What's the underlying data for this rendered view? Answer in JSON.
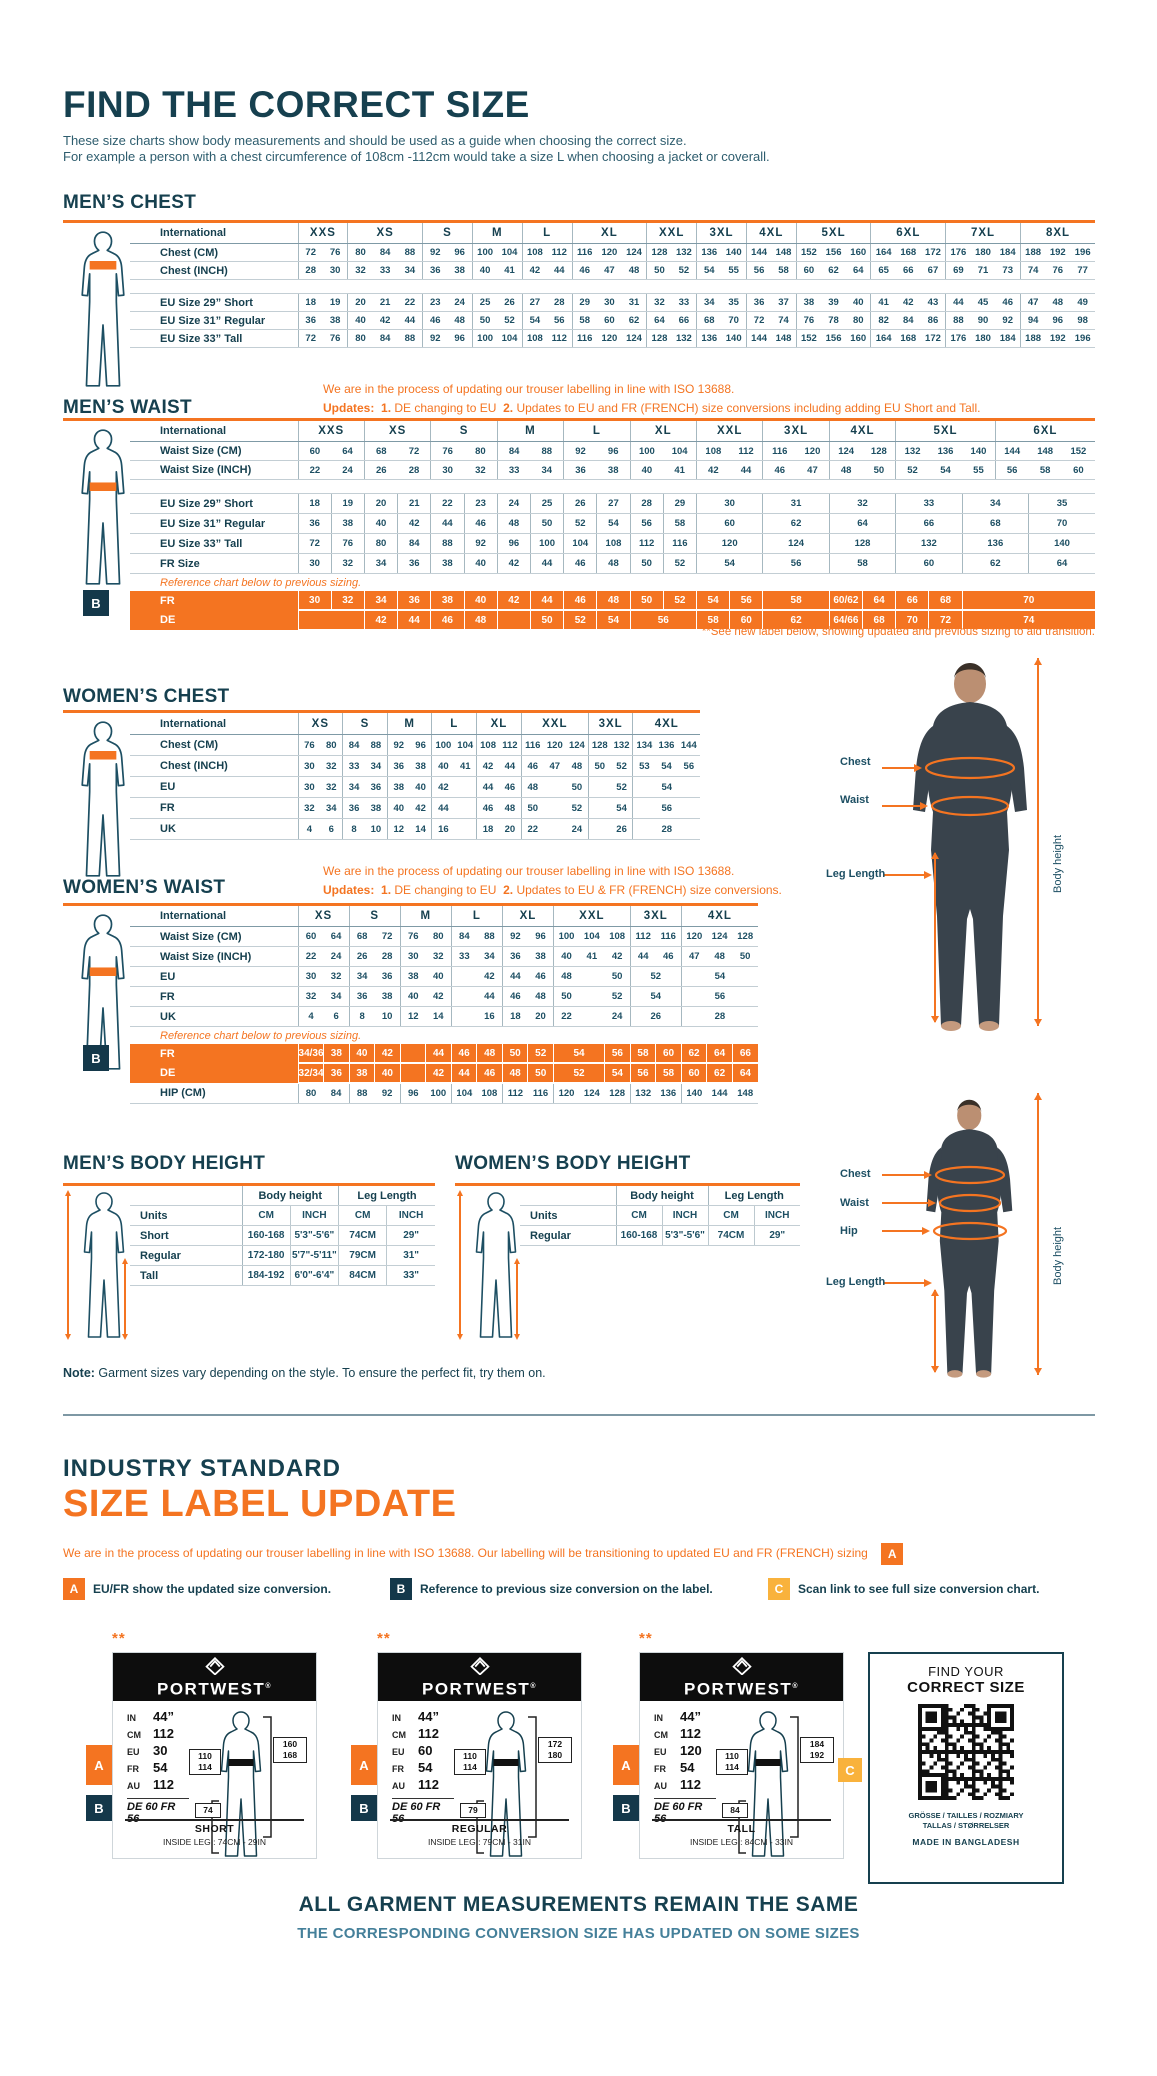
{
  "page": {
    "title": "FIND THE CORRECT SIZE",
    "intro1": "These size charts show body measurements and should be used as a guide when choosing the correct size.",
    "intro2": "For example a person with a chest circumference of 108cm -112cm would take a size L when choosing a jacket or coverall."
  },
  "colors": {
    "accent_orange": "#f47421",
    "navy": "#16404f",
    "badge_navy": "#14384a",
    "badge_yellow": "#f9b23c"
  },
  "badges": {
    "a": "A",
    "b": "B",
    "c": "C"
  },
  "figure_labels": {
    "chest": "Chest",
    "waist": "Waist",
    "hip": "Hip",
    "leg": "Leg Length",
    "body_height": "Body height"
  },
  "mens_chest": {
    "heading": "MEN’S CHEST",
    "label_header": "International",
    "groups": [
      [
        "XXS",
        2
      ],
      [
        "XS",
        3
      ],
      [
        "S",
        2
      ],
      [
        "M",
        2
      ],
      [
        "L",
        2
      ],
      [
        "XL",
        3
      ],
      [
        "XXL",
        2
      ],
      [
        "3XL",
        2
      ],
      [
        "4XL",
        2
      ],
      [
        "5XL",
        3
      ],
      [
        "6XL",
        3
      ],
      [
        "7XL",
        3
      ],
      [
        "8XL",
        3
      ]
    ],
    "rows": [
      {
        "label": "Chest (CM)",
        "cells": [
          "72",
          "76",
          "80",
          "84",
          "88",
          "92",
          "96",
          "100",
          "104",
          "108",
          "112",
          "116",
          "120",
          "124",
          "128",
          "132",
          "136",
          "140",
          "144",
          "148",
          "152",
          "156",
          "160",
          "164",
          "168",
          "172",
          "176",
          "180",
          "184",
          "188",
          "192",
          "196"
        ]
      },
      {
        "label": "Chest (INCH)",
        "cells": [
          "28",
          "30",
          "32",
          "33",
          "34",
          "36",
          "38",
          "40",
          "41",
          "42",
          "44",
          "46",
          "47",
          "48",
          "50",
          "52",
          "54",
          "55",
          "56",
          "58",
          "60",
          "62",
          "64",
          "65",
          "66",
          "67",
          "69",
          "71",
          "73",
          "74",
          "76",
          "77"
        ]
      },
      {
        "spacer": true
      },
      {
        "label": "EU Size 29” Short",
        "cells": [
          "18",
          "19",
          "20",
          "21",
          "22",
          "23",
          "24",
          "25",
          "26",
          "27",
          "28",
          "29",
          "30",
          "31",
          "32",
          "33",
          "34",
          "35",
          "36",
          "37",
          "38",
          "39",
          "40",
          "41",
          "42",
          "43",
          "44",
          "45",
          "46",
          "47",
          "48",
          "49"
        ]
      },
      {
        "label": "EU Size 31” Regular",
        "cells": [
          "36",
          "38",
          "40",
          "42",
          "44",
          "46",
          "48",
          "50",
          "52",
          "54",
          "56",
          "58",
          "60",
          "62",
          "64",
          "66",
          "68",
          "70",
          "72",
          "74",
          "76",
          "78",
          "80",
          "82",
          "84",
          "86",
          "88",
          "90",
          "92",
          "94",
          "96",
          "98"
        ]
      },
      {
        "label": "EU Size 33” Tall",
        "cells": [
          "72",
          "76",
          "80",
          "84",
          "88",
          "92",
          "96",
          "100",
          "104",
          "108",
          "112",
          "116",
          "120",
          "124",
          "128",
          "132",
          "136",
          "140",
          "144",
          "148",
          "152",
          "156",
          "160",
          "164",
          "168",
          "172",
          "176",
          "180",
          "184",
          "188",
          "192",
          "196"
        ]
      }
    ]
  },
  "mens_waist": {
    "heading": "MEN’S WAIST",
    "note1": "We are in the process of updating our trouser labelling in line with ISO 13688.",
    "updates_label": "Updates:",
    "u1n": "1.",
    "u1": "DE changing to EU",
    "u2n": "2.",
    "u2": "Updates to EU and FR (FRENCH) size conversions including adding EU Short and Tall.",
    "see_note": "**See new label below, showing updated and previous sizing to aid transition.",
    "label_header": "International",
    "groups": [
      [
        "XXS",
        2
      ],
      [
        "XS",
        2
      ],
      [
        "S",
        2
      ],
      [
        "M",
        2
      ],
      [
        "L",
        2
      ],
      [
        "XL",
        2
      ],
      [
        "XXL",
        2
      ],
      [
        "3XL",
        2
      ],
      [
        "4XL",
        2
      ],
      [
        "5XL",
        3
      ],
      [
        "6XL",
        3
      ]
    ],
    "rows": [
      {
        "label": "Waist Size (CM)",
        "cells": [
          "60",
          "64",
          "68",
          "72",
          "76",
          "80",
          "84",
          "88",
          "92",
          "96",
          "100",
          "104",
          "108",
          "112",
          "116",
          "120",
          "124",
          "128",
          "132",
          "136",
          "140",
          "144",
          "148",
          "152"
        ]
      },
      {
        "label": "Waist Size (INCH)",
        "cells": [
          "22",
          "24",
          "26",
          "28",
          "30",
          "32",
          "33",
          "34",
          "36",
          "38",
          "40",
          "41",
          "42",
          "44",
          "46",
          "47",
          "48",
          "50",
          "52",
          "54",
          "55",
          "56",
          "58",
          "60"
        ]
      },
      {
        "spacer": true
      },
      {
        "label": "EU Size 29” Short",
        "all": true,
        "cls": "erow",
        "cells": [
          "18",
          "19",
          "20",
          "21",
          "22",
          "23",
          "24",
          "25",
          "26",
          "27",
          "28",
          "29",
          [
            "30",
            2
          ],
          [
            "31",
            2
          ],
          [
            "32",
            2
          ],
          [
            "33",
            2
          ],
          [
            "34",
            2
          ],
          [
            "35",
            2
          ]
        ]
      },
      {
        "label": "EU Size 31” Regular",
        "all": true,
        "cls": "erow",
        "cells": [
          "36",
          "38",
          "40",
          "42",
          "44",
          "46",
          "48",
          "50",
          "52",
          "54",
          "56",
          "58",
          [
            "60",
            2
          ],
          [
            "62",
            2
          ],
          [
            "64",
            2
          ],
          [
            "66",
            2
          ],
          [
            "68",
            2
          ],
          [
            "70",
            2
          ]
        ]
      },
      {
        "label": "EU Size 33” Tall",
        "all": true,
        "cls": "erow",
        "cells": [
          "72",
          "76",
          "80",
          "84",
          "88",
          "92",
          "96",
          "100",
          "104",
          "108",
          "112",
          "116",
          [
            "120",
            2
          ],
          [
            "124",
            2
          ],
          [
            "128",
            2
          ],
          [
            "132",
            2
          ],
          [
            "136",
            2
          ],
          [
            "140",
            2
          ]
        ]
      },
      {
        "label": "FR Size",
        "all": true,
        "cls": "erow",
        "cells": [
          "30",
          "32",
          "34",
          "36",
          "38",
          "40",
          "42",
          "44",
          "46",
          "48",
          "50",
          "52",
          [
            "54",
            2
          ],
          [
            "56",
            2
          ],
          [
            "58",
            2
          ],
          [
            "60",
            2
          ],
          [
            "62",
            2
          ],
          [
            "64",
            2
          ]
        ]
      },
      {
        "note": "Reference chart below to previous sizing."
      },
      {
        "label": "FR",
        "orange": true,
        "cells": [
          "30",
          "32",
          "34",
          "36",
          "38",
          "40",
          "42",
          "44",
          "46",
          "48",
          "50",
          "52",
          "54",
          "56",
          [
            "58",
            2
          ],
          "60/62",
          "64",
          "66",
          "68",
          [
            "70",
            4
          ]
        ]
      },
      {
        "label": "DE",
        "orange": true,
        "cells": [
          [
            "",
            2
          ],
          "42",
          "44",
          "46",
          "48",
          "",
          "50",
          "52",
          "54",
          [
            "56",
            2
          ],
          "58",
          "60",
          [
            "62",
            2
          ],
          "64/66",
          "68",
          "70",
          "72",
          [
            "74",
            4
          ]
        ]
      }
    ]
  },
  "womens_chest": {
    "heading": "WOMEN’S CHEST",
    "label_header": "International",
    "groups": [
      [
        "XS",
        2
      ],
      [
        "S",
        2
      ],
      [
        "M",
        2
      ],
      [
        "L",
        2
      ],
      [
        "XL",
        2
      ],
      [
        "XXL",
        3
      ],
      [
        "3XL",
        2
      ],
      [
        "4XL",
        3
      ]
    ],
    "rows": [
      {
        "label": "Chest (CM)",
        "cells": [
          "76",
          "80",
          "84",
          "88",
          "92",
          "96",
          "100",
          "104",
          "108",
          "112",
          "116",
          "120",
          "124",
          "128",
          "132",
          "134",
          "136",
          "144"
        ]
      },
      {
        "label": "Chest (INCH)",
        "cells": [
          "30",
          "32",
          "33",
          "34",
          "36",
          "38",
          "40",
          "41",
          "42",
          "44",
          "46",
          "47",
          "48",
          "50",
          "52",
          "53",
          "54",
          "56"
        ]
      },
      {
        "label": "EU",
        "cells": [
          "30",
          "32",
          "34",
          "36",
          "38",
          "40",
          "42",
          "",
          "44",
          "46",
          "48",
          "",
          "50",
          "",
          "52",
          [
            "54",
            3
          ]
        ]
      },
      {
        "label": "FR",
        "cells": [
          "32",
          "34",
          "36",
          "38",
          "40",
          "42",
          "44",
          "",
          "46",
          "48",
          "50",
          "",
          "52",
          "",
          "54",
          [
            "56",
            3
          ]
        ]
      },
      {
        "label": "UK",
        "cells": [
          "4",
          "6",
          "8",
          "10",
          "12",
          "14",
          "16",
          "",
          "18",
          "20",
          "22",
          "",
          "24",
          "",
          "26",
          [
            "28",
            3
          ]
        ]
      }
    ]
  },
  "womens_waist": {
    "heading": "WOMEN’S WAIST",
    "note1": "We are in the process of updating our trouser labelling in line with ISO 13688.",
    "updates_label": "Updates:",
    "u1n": "1.",
    "u1": "DE changing to EU",
    "u2n": "2.",
    "u2": "Updates to EU & FR (FRENCH) size conversions.",
    "label_header": "International",
    "groups": [
      [
        "XS",
        2
      ],
      [
        "S",
        2
      ],
      [
        "M",
        2
      ],
      [
        "L",
        2
      ],
      [
        "XL",
        2
      ],
      [
        "XXL",
        3
      ],
      [
        "3XL",
        2
      ],
      [
        "4XL",
        3
      ]
    ],
    "rows": [
      {
        "label": "Waist Size (CM)",
        "cells": [
          "60",
          "64",
          "68",
          "72",
          "76",
          "80",
          "84",
          "88",
          "92",
          "96",
          "100",
          "104",
          "108",
          "112",
          "116",
          "120",
          "124",
          "128"
        ]
      },
      {
        "label": "Waist Size (INCH)",
        "cells": [
          "22",
          "24",
          "26",
          "28",
          "30",
          "32",
          "33",
          "34",
          "36",
          "38",
          "40",
          "41",
          "42",
          "44",
          "46",
          "47",
          "48",
          "50"
        ]
      },
      {
        "label": "EU",
        "cells": [
          "30",
          "32",
          "34",
          "36",
          "38",
          "40",
          "",
          "42",
          "44",
          "46",
          "48",
          "",
          "50",
          [
            "52",
            2
          ],
          [
            "54",
            3
          ]
        ]
      },
      {
        "label": "FR",
        "cells": [
          "32",
          "34",
          "36",
          "38",
          "40",
          "42",
          "",
          "44",
          "46",
          "48",
          "50",
          "",
          "52",
          [
            "54",
            2
          ],
          [
            "56",
            3
          ]
        ]
      },
      {
        "label": "UK",
        "cells": [
          "4",
          "6",
          "8",
          "10",
          "12",
          "14",
          "",
          "16",
          "18",
          "20",
          "22",
          "",
          "24",
          [
            "26",
            2
          ],
          [
            "28",
            3
          ]
        ]
      },
      {
        "note": "Reference chart below to previous sizing."
      },
      {
        "label": "FR",
        "orange": true,
        "cells": [
          "34/36",
          "38",
          "40",
          "42",
          "",
          "44",
          "46",
          "48",
          "50",
          "52",
          [
            "54",
            2
          ],
          "56",
          "58",
          "60",
          "62",
          "64",
          "66"
        ]
      },
      {
        "label": "DE",
        "orange": true,
        "cells": [
          "32/34",
          "36",
          "38",
          "40",
          "",
          "42",
          "44",
          "46",
          "48",
          "50",
          [
            "52",
            2
          ],
          "54",
          "56",
          "58",
          "60",
          "62",
          "64"
        ]
      },
      {
        "label": "HIP (CM)",
        "cells": [
          "80",
          "84",
          "88",
          "92",
          "96",
          "100",
          "104",
          "108",
          "112",
          "116",
          "120",
          "124",
          "128",
          "132",
          "136",
          "140",
          "144",
          "148"
        ]
      }
    ]
  },
  "body_height": {
    "mens_heading": "MEN’S BODY HEIGHT",
    "womens_heading": "WOMEN’S BODY HEIGHT",
    "units_label": "Units",
    "group1": "Body height",
    "group2": "Leg Length",
    "cm": "CM",
    "inch": "INCH",
    "mens_rows": [
      [
        "Short",
        "160-168",
        "5'3\"-5'6\"",
        "74CM",
        "29\""
      ],
      [
        "Regular",
        "172-180",
        "5'7\"-5'11\"",
        "79CM",
        "31\""
      ],
      [
        "Tall",
        "184-192",
        "6'0\"-6'4\"",
        "84CM",
        "33\""
      ]
    ],
    "womens_rows": [
      [
        "Regular",
        "160-168",
        "5'3\"-5'6\"",
        "74CM",
        "29\""
      ]
    ]
  },
  "note": {
    "bold": "Note:",
    "text": " Garment sizes vary depending on the style. To ensure the perfect fit, try them on."
  },
  "industry": {
    "line1": "INDUSTRY STANDARD",
    "line2": "SIZE LABEL UPDATE",
    "para": "We are in the process of updating our trouser labelling in line with ISO 13688. Our labelling will be transitioning to updated EU and FR (FRENCH) sizing",
    "legend": [
      {
        "badge": "A",
        "text": "EU/FR show the updated size conversion."
      },
      {
        "badge": "B",
        "text": "Reference to previous size conversion on the label."
      },
      {
        "badge": "C",
        "text": "Scan link to see full size conversion chart."
      }
    ]
  },
  "brand": "PORTWEST",
  "stars": "**",
  "cards": [
    {
      "fit": "SHORT",
      "inside_leg": "INSIDE LEG : 74CM - 29IN",
      "measurements": [
        [
          "IN",
          "44”"
        ],
        [
          "CM",
          "112"
        ],
        [
          "EU",
          "30"
        ],
        [
          "FR",
          "54"
        ],
        [
          "AU",
          "112"
        ]
      ],
      "previous": "DE 60 FR 56",
      "waist_box": [
        "110",
        "114"
      ],
      "height_box": [
        "160",
        "168"
      ],
      "leg_box": "74"
    },
    {
      "fit": "REGULAR",
      "inside_leg": "INSIDE LEG : 79CM - 31IN",
      "measurements": [
        [
          "IN",
          "44”"
        ],
        [
          "CM",
          "112"
        ],
        [
          "EU",
          "60"
        ],
        [
          "FR",
          "54"
        ],
        [
          "AU",
          "112"
        ]
      ],
      "previous": "DE 60 FR 56",
      "waist_box": [
        "110",
        "114"
      ],
      "height_box": [
        "172",
        "180"
      ],
      "leg_box": "79"
    },
    {
      "fit": "TALL",
      "inside_leg": "INSIDE LEG : 84CM - 33IN",
      "measurements": [
        [
          "IN",
          "44”"
        ],
        [
          "CM",
          "112"
        ],
        [
          "EU",
          "120"
        ],
        [
          "FR",
          "54"
        ],
        [
          "AU",
          "112"
        ]
      ],
      "previous": "DE 60 FR 56",
      "waist_box": [
        "110",
        "114"
      ],
      "height_box": [
        "184",
        "192"
      ],
      "leg_box": "84"
    }
  ],
  "qr_card": {
    "line1": "FIND YOUR",
    "line2": "CORRECT SIZE",
    "langs1": "GRÖSSE / TAILLES / ROZMIARY",
    "langs2": "TALLAS / STØRRELSER",
    "made": "MADE IN BANGLADESH"
  },
  "footer": {
    "line1": "ALL GARMENT MEASUREMENTS REMAIN THE SAME",
    "line2": "THE CORRESPONDING CONVERSION SIZE HAS UPDATED ON SOME SIZES"
  }
}
